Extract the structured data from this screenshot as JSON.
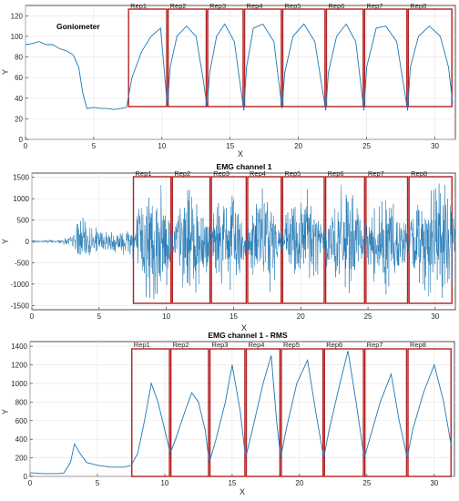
{
  "chart_data": [
    {
      "type": "line",
      "title": "Goniometer",
      "xlabel": "X",
      "ylabel": "Y",
      "xlim": [
        0,
        31.5
      ],
      "ylim": [
        0,
        130
      ],
      "xticks": [
        0,
        5,
        10,
        15,
        20,
        25,
        30
      ],
      "yticks": [
        0,
        20,
        40,
        60,
        80,
        100,
        120
      ],
      "grid": true,
      "series_color": "#1f77b4",
      "rep_color": "#b22222",
      "repetitions": [
        {
          "label": "Rep1",
          "start": 7.5,
          "end": 10.4
        },
        {
          "label": "Rep2",
          "start": 10.4,
          "end": 13.3
        },
        {
          "label": "Rep3",
          "start": 13.3,
          "end": 16.0
        },
        {
          "label": "Rep4",
          "start": 16.0,
          "end": 18.8
        },
        {
          "label": "Rep5",
          "start": 18.8,
          "end": 22.0
        },
        {
          "label": "Rep6",
          "start": 22.0,
          "end": 24.8
        },
        {
          "label": "Rep7",
          "start": 24.8,
          "end": 28.0
        },
        {
          "label": "Rep8",
          "start": 28.0,
          "end": 31.3
        }
      ],
      "series": [
        {
          "x": [
            0,
            0.5,
            1,
            1.5,
            2,
            2.5,
            3,
            3.5,
            3.9,
            4.2,
            4.5,
            5,
            5.5,
            6,
            6.5,
            7,
            7.4,
            7.8,
            8.5,
            9.2,
            9.9,
            10.4,
            10.6,
            11.1,
            11.8,
            12.5,
            13.0,
            13.3,
            13.5,
            14.0,
            14.6,
            15.3,
            16.0,
            16.2,
            16.7,
            17.4,
            18.2,
            18.8,
            19.0,
            19.6,
            20.4,
            21.2,
            22.0,
            22.2,
            22.8,
            23.5,
            24.2,
            24.8,
            25.0,
            25.7,
            26.4,
            27.2,
            28.0,
            28.2,
            28.8,
            29.6,
            30.4,
            31.0,
            31.3
          ],
          "y": [
            92,
            93,
            95,
            92,
            92,
            88,
            86,
            82,
            70,
            45,
            30,
            31,
            30,
            30,
            29,
            30,
            31,
            60,
            85,
            100,
            108,
            32,
            70,
            100,
            110,
            100,
            60,
            32,
            65,
            100,
            112,
            95,
            28,
            70,
            108,
            112,
            95,
            30,
            65,
            100,
            112,
            95,
            28,
            65,
            100,
            112,
            95,
            28,
            70,
            108,
            110,
            95,
            28,
            70,
            100,
            110,
            100,
            70,
            35
          ]
        }
      ]
    },
    {
      "type": "line",
      "title": "EMG channel 1",
      "xlabel": "X",
      "ylabel": "Y",
      "xlim": [
        0,
        31.5
      ],
      "ylim": [
        -1600,
        1600
      ],
      "xticks": [
        0,
        5,
        10,
        15,
        20,
        25,
        30
      ],
      "yticks": [
        -1500,
        -1000,
        -500,
        0,
        500,
        1000,
        1500
      ],
      "grid": true,
      "series_color": "#1f77b4",
      "rep_color": "#b22222",
      "repetitions": [
        {
          "label": "Rep1",
          "start": 7.5,
          "end": 10.4
        },
        {
          "label": "Rep2",
          "start": 10.4,
          "end": 13.3
        },
        {
          "label": "Rep3",
          "start": 13.3,
          "end": 16.0
        },
        {
          "label": "Rep4",
          "start": 16.0,
          "end": 18.6
        },
        {
          "label": "Rep5",
          "start": 18.6,
          "end": 21.8
        },
        {
          "label": "Rep6",
          "start": 21.8,
          "end": 24.8
        },
        {
          "label": "Rep7",
          "start": 24.8,
          "end": 28.0
        },
        {
          "label": "Rep8",
          "start": 28.0,
          "end": 31.3
        }
      ],
      "envelope": {
        "x": [
          0,
          2,
          3,
          3.5,
          4,
          5,
          6,
          7,
          7.5,
          8.5,
          9.0,
          10.0,
          10.4,
          11.0,
          11.5,
          12.5,
          13.3,
          14.0,
          15.0,
          16.0,
          16.5,
          17.5,
          18.6,
          19.5,
          20.5,
          21.8,
          22.5,
          23.5,
          24.8,
          25.5,
          26.5,
          28.0,
          28.7,
          29.8,
          31.0,
          31.5
        ],
        "amplitude": [
          40,
          50,
          150,
          700,
          500,
          350,
          300,
          400,
          600,
          1500,
          1600,
          1300,
          500,
          1000,
          1500,
          1400,
          500,
          1200,
          1400,
          500,
          1100,
          1500,
          450,
          1200,
          1600,
          500,
          1300,
          1500,
          450,
          1100,
          1500,
          450,
          1100,
          1600,
          1500,
          1300
        ]
      }
    },
    {
      "type": "line",
      "title": "EMG channel 1 - RMS",
      "xlabel": "X",
      "ylabel": "Y",
      "xlim": [
        0,
        31.5
      ],
      "ylim": [
        0,
        1450
      ],
      "xticks": [
        0,
        5,
        10,
        15,
        20,
        25,
        30
      ],
      "yticks": [
        0,
        200,
        400,
        600,
        800,
        1000,
        1200,
        1400
      ],
      "grid": true,
      "series_color": "#1f77b4",
      "rep_color": "#b22222",
      "repetitions": [
        {
          "label": "Rep1",
          "start": 7.5,
          "end": 10.4
        },
        {
          "label": "Rep2",
          "start": 10.4,
          "end": 13.3
        },
        {
          "label": "Rep3",
          "start": 13.3,
          "end": 16.0
        },
        {
          "label": "Rep4",
          "start": 16.0,
          "end": 18.6
        },
        {
          "label": "Rep5",
          "start": 18.6,
          "end": 21.8
        },
        {
          "label": "Rep6",
          "start": 21.8,
          "end": 24.8
        },
        {
          "label": "Rep7",
          "start": 24.8,
          "end": 28.0
        },
        {
          "label": "Rep8",
          "start": 28.0,
          "end": 31.3
        }
      ],
      "series": [
        {
          "x": [
            0,
            1,
            2,
            2.5,
            3,
            3.3,
            3.7,
            4.2,
            5,
            6,
            7,
            7.5,
            8.0,
            8.5,
            9.0,
            9.5,
            10.0,
            10.4,
            10.8,
            11.5,
            12.0,
            12.5,
            13.0,
            13.3,
            13.8,
            14.5,
            15.0,
            15.6,
            16.0,
            16.5,
            17.3,
            17.9,
            18.3,
            18.6,
            19.0,
            19.8,
            20.6,
            21.2,
            21.8,
            22.2,
            23.0,
            23.6,
            24.2,
            24.8,
            25.2,
            26.0,
            26.8,
            27.4,
            28.0,
            28.4,
            29.2,
            30.0,
            30.7,
            31.3
          ],
          "y": [
            40,
            30,
            30,
            35,
            150,
            350,
            250,
            150,
            120,
            100,
            100,
            120,
            250,
            600,
            1000,
            800,
            500,
            250,
            400,
            700,
            900,
            800,
            500,
            150,
            400,
            800,
            1200,
            700,
            200,
            500,
            1000,
            1300,
            600,
            200,
            500,
            1000,
            1250,
            700,
            200,
            500,
            1000,
            1350,
            800,
            200,
            400,
            800,
            1100,
            600,
            200,
            500,
            900,
            1200,
            800,
            300
          ]
        }
      ]
    }
  ]
}
